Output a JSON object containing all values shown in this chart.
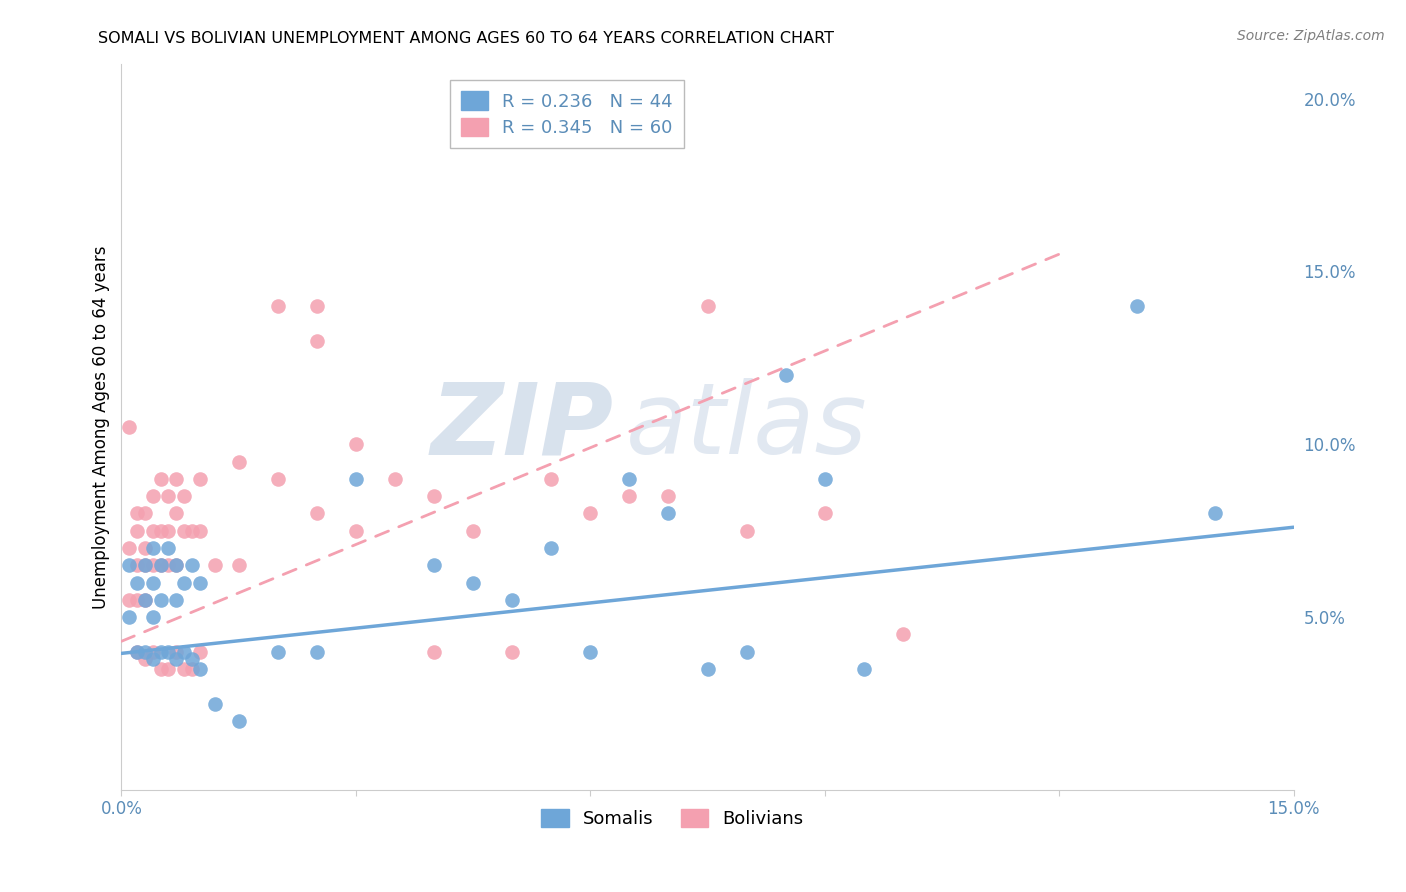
{
  "title": "SOMALI VS BOLIVIAN UNEMPLOYMENT AMONG AGES 60 TO 64 YEARS CORRELATION CHART",
  "source": "Source: ZipAtlas.com",
  "ylabel_label": "Unemployment Among Ages 60 to 64 years",
  "xlim": [
    0.0,
    0.15
  ],
  "ylim": [
    0.0,
    0.21
  ],
  "xticks": [
    0.0,
    0.03,
    0.06,
    0.09,
    0.12,
    0.15
  ],
  "yticks": [
    0.05,
    0.1,
    0.15,
    0.2
  ],
  "ytick_labels": [
    "5.0%",
    "10.0%",
    "15.0%",
    "20.0%"
  ],
  "xtick_labels": [
    "0.0%",
    "",
    "",
    "",
    "",
    "15.0%"
  ],
  "somali_color": "#6EA6D8",
  "bolivian_color": "#F4A0B0",
  "somali_R": 0.236,
  "somali_N": 44,
  "bolivian_R": 0.345,
  "bolivian_N": 60,
  "somali_line_x": [
    0.0,
    0.15
  ],
  "somali_line_y": [
    0.0395,
    0.076
  ],
  "bolivian_line_x": [
    0.0,
    0.12
  ],
  "bolivian_line_y": [
    0.043,
    0.155
  ],
  "watermark_zip": "ZIP",
  "watermark_atlas": "atlas",
  "grid_color": "#CCCCCC",
  "axis_color": "#5B8DB8",
  "legend_border_color": "#BBBBBB",
  "somali_points_x": [
    0.001,
    0.001,
    0.002,
    0.002,
    0.003,
    0.003,
    0.003,
    0.004,
    0.004,
    0.004,
    0.004,
    0.005,
    0.005,
    0.005,
    0.006,
    0.006,
    0.007,
    0.007,
    0.007,
    0.008,
    0.008,
    0.009,
    0.009,
    0.01,
    0.01,
    0.012,
    0.015,
    0.02,
    0.025,
    0.03,
    0.04,
    0.045,
    0.05,
    0.055,
    0.06,
    0.065,
    0.07,
    0.075,
    0.08,
    0.085,
    0.09,
    0.095,
    0.13,
    0.14
  ],
  "somali_points_y": [
    0.065,
    0.05,
    0.06,
    0.04,
    0.065,
    0.055,
    0.04,
    0.07,
    0.06,
    0.05,
    0.038,
    0.065,
    0.055,
    0.04,
    0.07,
    0.04,
    0.065,
    0.055,
    0.038,
    0.06,
    0.04,
    0.065,
    0.038,
    0.06,
    0.035,
    0.025,
    0.02,
    0.04,
    0.04,
    0.09,
    0.065,
    0.06,
    0.055,
    0.07,
    0.04,
    0.09,
    0.08,
    0.035,
    0.04,
    0.12,
    0.09,
    0.035,
    0.14,
    0.08
  ],
  "bolivian_points_x": [
    0.001,
    0.001,
    0.001,
    0.002,
    0.002,
    0.002,
    0.002,
    0.002,
    0.003,
    0.003,
    0.003,
    0.003,
    0.003,
    0.004,
    0.004,
    0.004,
    0.004,
    0.005,
    0.005,
    0.005,
    0.005,
    0.006,
    0.006,
    0.006,
    0.006,
    0.007,
    0.007,
    0.007,
    0.007,
    0.008,
    0.008,
    0.008,
    0.009,
    0.009,
    0.01,
    0.01,
    0.01,
    0.012,
    0.015,
    0.015,
    0.02,
    0.02,
    0.025,
    0.025,
    0.025,
    0.03,
    0.03,
    0.035,
    0.04,
    0.04,
    0.045,
    0.05,
    0.055,
    0.06,
    0.065,
    0.07,
    0.075,
    0.08,
    0.09,
    0.1
  ],
  "bolivian_points_y": [
    0.105,
    0.07,
    0.055,
    0.08,
    0.075,
    0.065,
    0.055,
    0.04,
    0.08,
    0.07,
    0.065,
    0.055,
    0.038,
    0.085,
    0.075,
    0.065,
    0.04,
    0.09,
    0.075,
    0.065,
    0.035,
    0.085,
    0.075,
    0.065,
    0.035,
    0.09,
    0.08,
    0.065,
    0.04,
    0.085,
    0.075,
    0.035,
    0.075,
    0.035,
    0.09,
    0.075,
    0.04,
    0.065,
    0.095,
    0.065,
    0.14,
    0.09,
    0.14,
    0.13,
    0.08,
    0.1,
    0.075,
    0.09,
    0.085,
    0.04,
    0.075,
    0.04,
    0.09,
    0.08,
    0.085,
    0.085,
    0.14,
    0.075,
    0.08,
    0.045
  ]
}
